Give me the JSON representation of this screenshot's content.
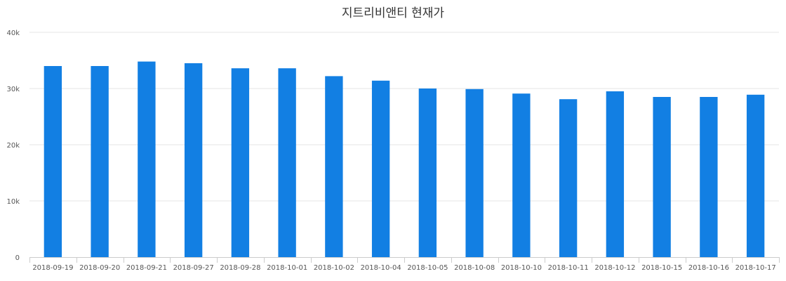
{
  "chart_data": {
    "type": "bar",
    "title": "지트리비앤티 현재가",
    "xlabel": "",
    "ylabel": "",
    "categories": [
      "2018-09-19",
      "2018-09-20",
      "2018-09-21",
      "2018-09-27",
      "2018-09-28",
      "2018-10-01",
      "2018-10-02",
      "2018-10-04",
      "2018-10-05",
      "2018-10-08",
      "2018-10-10",
      "2018-10-11",
      "2018-10-12",
      "2018-10-15",
      "2018-10-16",
      "2018-10-17"
    ],
    "values": [
      34000,
      34000,
      34800,
      34500,
      33600,
      33600,
      32200,
      31400,
      30000,
      29900,
      29100,
      28100,
      29500,
      28500,
      28500,
      28900
    ],
    "ylim": [
      0,
      40000
    ],
    "yticks": [
      0,
      10000,
      20000,
      30000,
      40000
    ],
    "ytick_labels": [
      "0",
      "10k",
      "20k",
      "30k",
      "40k"
    ],
    "grid": true,
    "legend": "none",
    "bar_color": "#127fe3"
  }
}
